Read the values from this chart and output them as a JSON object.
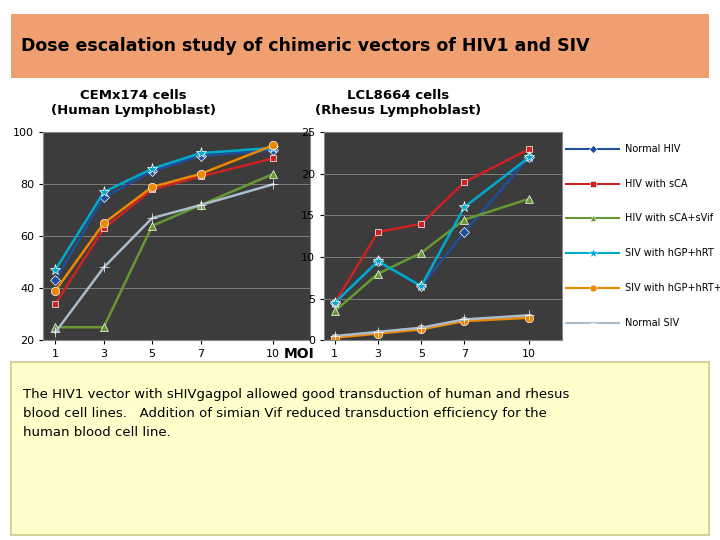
{
  "title": "Dose escalation study of chimeric vectors of HIV1 and SIV",
  "title_bg": "#f0a070",
  "subtitle_left": "CEMx174 cells\n(Human Lymphoblast)",
  "subtitle_right": "LCL8664 cells\n(Rhesus Lymphoblast)",
  "xlabel": "MOI",
  "x_values": [
    1,
    3,
    5,
    7,
    10
  ],
  "left_ylim": [
    20,
    100
  ],
  "left_yticks": [
    20,
    40,
    60,
    80,
    100
  ],
  "right_ylim": [
    0,
    25
  ],
  "right_yticks": [
    0,
    5,
    10,
    15,
    20,
    25
  ],
  "plot_bg": "#3c3c3c",
  "fig_bg": "#ffffff",
  "outer_bg": "#ffffff",
  "series": [
    {
      "label": "Normal HIV",
      "color": "#1f4e9c",
      "marker": "D",
      "markersize": 5,
      "left_y": [
        43,
        75,
        85,
        91,
        93
      ],
      "right_y": [
        4.5,
        9.5,
        6.5,
        13,
        22
      ]
    },
    {
      "label": "HIV with sCA",
      "color": "#cc2222",
      "marker": "s",
      "markersize": 5,
      "left_y": [
        34,
        63,
        78,
        83,
        90
      ],
      "right_y": [
        4.5,
        13,
        14,
        19,
        23
      ]
    },
    {
      "label": "HIV with sCA+sVif",
      "color": "#669933",
      "marker": "^",
      "markersize": 6,
      "left_y": [
        25,
        25,
        64,
        72,
        84
      ],
      "right_y": [
        3.5,
        8,
        10.5,
        14.5,
        17
      ]
    },
    {
      "label": "SIV with hGP+hRT",
      "color": "#00aacc",
      "marker": "*",
      "markersize": 8,
      "left_y": [
        47,
        77,
        86,
        92,
        94
      ],
      "right_y": [
        4.5,
        9.5,
        6.5,
        16,
        22
      ]
    },
    {
      "label": "SIV with hGP+hRT+hVif",
      "color": "#ee8800",
      "marker": "o",
      "markersize": 6,
      "left_y": [
        39,
        65,
        79,
        84,
        95
      ],
      "right_y": [
        0.3,
        0.8,
        1.3,
        2.3,
        2.7
      ]
    },
    {
      "label": "Normal SIV",
      "color": "#aabbcc",
      "marker": "+",
      "markersize": 7,
      "left_y": [
        23,
        48,
        67,
        72,
        80
      ],
      "right_y": [
        0.5,
        1.0,
        1.5,
        2.5,
        3.0
      ]
    }
  ],
  "note_bg": "#ffffcc",
  "note_text": "The HIV1 vector with sHIVgagpol allowed good transduction of human and rhesus\nblood cell lines.   Addition of simian Vif reduced transduction efficiency for the\nhuman blood cell line."
}
